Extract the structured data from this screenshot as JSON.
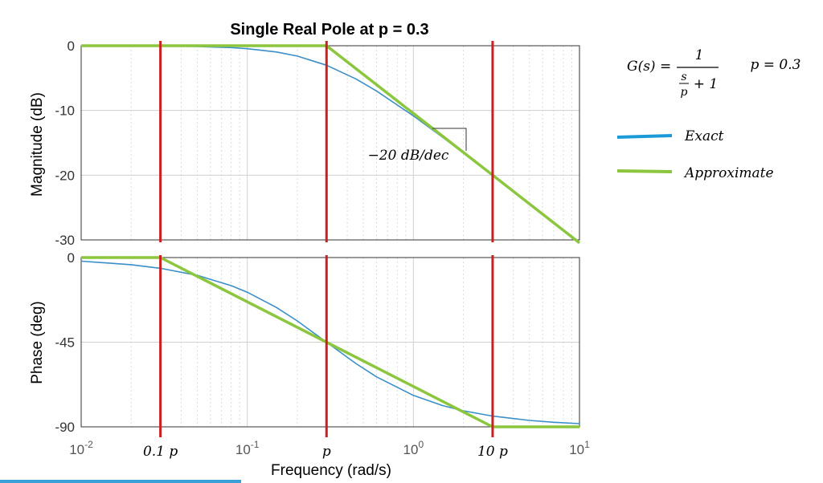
{
  "chart_data": {
    "type": "line",
    "title": "Single Real Pole at p = 0.3",
    "xlabel": "Frequency  (rad/s)",
    "x_scale": "log",
    "xlim": [
      0.01,
      10
    ],
    "pole": 0.3,
    "x_ticks": [
      {
        "base": "10",
        "exp": "-2",
        "value": 0.01
      },
      {
        "base": "10",
        "exp": "-1",
        "value": 0.1
      },
      {
        "base": "10",
        "exp": "0",
        "value": 1
      },
      {
        "base": "10",
        "exp": "1",
        "value": 10
      }
    ],
    "markers": [
      {
        "label": "0.1 p",
        "x": 0.03
      },
      {
        "label": "p",
        "x": 0.3
      },
      {
        "label": "10 p",
        "x": 3
      }
    ],
    "grid": true,
    "panels": [
      {
        "name": "magnitude",
        "ylabel": "Magnitude (dB)",
        "ylim": [
          -30,
          0
        ],
        "yticks": [
          0,
          -10,
          -20,
          -30
        ],
        "series": [
          {
            "name": "Exact",
            "color": "#3b8fc8",
            "x": [
              0.01,
              0.02,
              0.03,
              0.05,
              0.08,
              0.1,
              0.15,
              0.2,
              0.3,
              0.45,
              0.6,
              1,
              1.5,
              2,
              3,
              5,
              7,
              10
            ],
            "y": [
              0.0,
              -0.02,
              -0.04,
              -0.12,
              -0.29,
              -0.46,
              -0.97,
              -1.6,
              -3.01,
              -5.12,
              -6.99,
              -10.83,
              -14.15,
              -16.58,
              -20.04,
              -24.46,
              -27.38,
              -30.47
            ]
          },
          {
            "name": "Approximate",
            "color": "#8cc63f",
            "x": [
              0.01,
              0.3,
              3,
              10
            ],
            "y": [
              0,
              0,
              -20,
              -30.46
            ]
          }
        ],
        "annotation": "-20 dB/dec"
      },
      {
        "name": "phase",
        "ylabel": "Phase (deg)",
        "ylim": [
          -90,
          0
        ],
        "yticks": [
          0,
          -45,
          -90
        ],
        "series": [
          {
            "name": "Exact",
            "color": "#3b8fc8",
            "x": [
              0.01,
              0.02,
              0.03,
              0.05,
              0.08,
              0.1,
              0.15,
              0.2,
              0.3,
              0.45,
              0.6,
              1,
              1.5,
              2,
              3,
              5,
              7,
              10
            ],
            "y": [
              -1.91,
              -3.81,
              -5.71,
              -9.46,
              -14.93,
              -18.43,
              -26.57,
              -33.69,
              -45.0,
              -56.31,
              -63.43,
              -73.3,
              -78.69,
              -81.47,
              -84.29,
              -86.57,
              -87.55,
              -88.28
            ]
          },
          {
            "name": "Approximate",
            "color": "#8cc63f",
            "x": [
              0.01,
              0.03,
              3,
              10
            ],
            "y": [
              0,
              0,
              -90,
              -90
            ]
          }
        ]
      }
    ]
  },
  "formula": {
    "lhs": "G(s) =",
    "numerator": "1",
    "denom_s": "s",
    "denom_p": "p",
    "denom_tail": "+ 1",
    "pole_text": "p = 0.3"
  },
  "legend": [
    {
      "label": "Exact",
      "color": "#1a9ad6"
    },
    {
      "label": "Approximate",
      "color": "#8cc63f"
    }
  ],
  "slope_label": "−20 dB/dec"
}
